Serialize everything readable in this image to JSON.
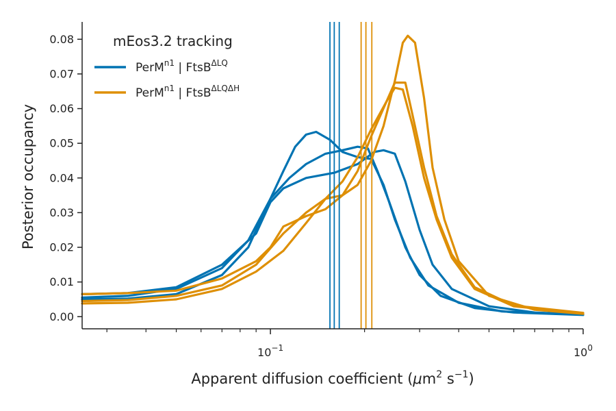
{
  "chart_data": {
    "type": "line",
    "xscale": "log",
    "xlim": [
      0.025,
      1.0
    ],
    "ylim": [
      -0.0035,
      0.085
    ],
    "ylabel": "Posterior occupancy",
    "xlabel": {
      "main": "Apparent diffusion coefficient (",
      "mu": "μ",
      "m": "m",
      "m_exp": "2",
      "s": " s",
      "s_exp": "−1",
      "close": ")"
    },
    "x_ticks": [
      {
        "value": 0.1,
        "base": "10",
        "exp": "−1"
      },
      {
        "value": 1.0,
        "base": "10",
        "exp": "0"
      }
    ],
    "y_ticks": [
      0.0,
      0.01,
      0.02,
      0.03,
      0.04,
      0.05,
      0.06,
      0.07,
      0.08
    ],
    "y_tick_labels": [
      "0.00",
      "0.01",
      "0.02",
      "0.03",
      "0.04",
      "0.05",
      "0.06",
      "0.07",
      "0.08"
    ],
    "legend": {
      "title": "mEos3.2 tracking",
      "placement": "top-left",
      "entries": [
        {
          "base": "PerM",
          "sup1": "n1",
          "mid": " | FtsB",
          "sup2": "ΔLQ",
          "color": "#0173b2"
        },
        {
          "base": "PerM",
          "sup1": "n1",
          "mid": " | FtsB",
          "sup2": "ΔLQΔH",
          "color": "#de8f05"
        }
      ]
    },
    "vlines": [
      {
        "x": 0.155,
        "color": "#0173b2"
      },
      {
        "x": 0.16,
        "color": "#0173b2"
      },
      {
        "x": 0.166,
        "color": "#0173b2"
      },
      {
        "x": 0.195,
        "color": "#de8f05"
      },
      {
        "x": 0.202,
        "color": "#de8f05"
      },
      {
        "x": 0.211,
        "color": "#de8f05"
      }
    ],
    "series": [
      {
        "group": 0,
        "color": "#0173b2",
        "points": [
          [
            0.025,
            0.0055
          ],
          [
            0.035,
            0.006
          ],
          [
            0.05,
            0.008
          ],
          [
            0.07,
            0.014
          ],
          [
            0.085,
            0.022
          ],
          [
            0.1,
            0.034
          ],
          [
            0.115,
            0.04
          ],
          [
            0.13,
            0.044
          ],
          [
            0.15,
            0.047
          ],
          [
            0.17,
            0.048
          ],
          [
            0.19,
            0.049
          ],
          [
            0.205,
            0.0485
          ],
          [
            0.22,
            0.042
          ],
          [
            0.24,
            0.033
          ],
          [
            0.27,
            0.02
          ],
          [
            0.3,
            0.012
          ],
          [
            0.35,
            0.006
          ],
          [
            0.45,
            0.0025
          ],
          [
            0.6,
            0.0012
          ],
          [
            1.0,
            0.0005
          ]
        ]
      },
      {
        "group": 0,
        "color": "#0173b2",
        "points": [
          [
            0.025,
            0.005
          ],
          [
            0.035,
            0.0052
          ],
          [
            0.05,
            0.0065
          ],
          [
            0.07,
            0.012
          ],
          [
            0.085,
            0.02
          ],
          [
            0.1,
            0.034
          ],
          [
            0.11,
            0.042
          ],
          [
            0.12,
            0.049
          ],
          [
            0.13,
            0.0525
          ],
          [
            0.14,
            0.0533
          ],
          [
            0.155,
            0.051
          ],
          [
            0.17,
            0.0475
          ],
          [
            0.19,
            0.046
          ],
          [
            0.21,
            0.0455
          ],
          [
            0.23,
            0.038
          ],
          [
            0.25,
            0.028
          ],
          [
            0.28,
            0.017
          ],
          [
            0.32,
            0.009
          ],
          [
            0.4,
            0.004
          ],
          [
            0.55,
            0.0015
          ],
          [
            1.0,
            0.0006
          ]
        ]
      },
      {
        "group": 0,
        "color": "#0173b2",
        "points": [
          [
            0.025,
            0.0065
          ],
          [
            0.035,
            0.0068
          ],
          [
            0.05,
            0.0085
          ],
          [
            0.07,
            0.015
          ],
          [
            0.09,
            0.024
          ],
          [
            0.1,
            0.033
          ],
          [
            0.11,
            0.037
          ],
          [
            0.13,
            0.04
          ],
          [
            0.16,
            0.0415
          ],
          [
            0.19,
            0.044
          ],
          [
            0.215,
            0.0475
          ],
          [
            0.23,
            0.048
          ],
          [
            0.25,
            0.047
          ],
          [
            0.27,
            0.039
          ],
          [
            0.3,
            0.025
          ],
          [
            0.33,
            0.015
          ],
          [
            0.38,
            0.008
          ],
          [
            0.5,
            0.003
          ],
          [
            0.7,
            0.0012
          ],
          [
            1.0,
            0.0006
          ]
        ]
      },
      {
        "group": 1,
        "color": "#de8f05",
        "points": [
          [
            0.025,
            0.0045
          ],
          [
            0.035,
            0.0048
          ],
          [
            0.05,
            0.006
          ],
          [
            0.07,
            0.009
          ],
          [
            0.09,
            0.015
          ],
          [
            0.11,
            0.024
          ],
          [
            0.13,
            0.03
          ],
          [
            0.15,
            0.034
          ],
          [
            0.17,
            0.039
          ],
          [
            0.19,
            0.046
          ],
          [
            0.21,
            0.054
          ],
          [
            0.235,
            0.062
          ],
          [
            0.25,
            0.066
          ],
          [
            0.265,
            0.0655
          ],
          [
            0.285,
            0.055
          ],
          [
            0.31,
            0.04
          ],
          [
            0.34,
            0.028
          ],
          [
            0.38,
            0.017
          ],
          [
            0.45,
            0.008
          ],
          [
            0.6,
            0.003
          ],
          [
            1.0,
            0.001
          ]
        ]
      },
      {
        "group": 1,
        "color": "#de8f05",
        "points": [
          [
            0.025,
            0.0065
          ],
          [
            0.035,
            0.0068
          ],
          [
            0.05,
            0.0075
          ],
          [
            0.07,
            0.011
          ],
          [
            0.09,
            0.016
          ],
          [
            0.1,
            0.02
          ],
          [
            0.11,
            0.026
          ],
          [
            0.13,
            0.029
          ],
          [
            0.15,
            0.031
          ],
          [
            0.17,
            0.035
          ],
          [
            0.19,
            0.042
          ],
          [
            0.21,
            0.052
          ],
          [
            0.235,
            0.062
          ],
          [
            0.25,
            0.0675
          ],
          [
            0.27,
            0.0675
          ],
          [
            0.285,
            0.058
          ],
          [
            0.31,
            0.043
          ],
          [
            0.34,
            0.029
          ],
          [
            0.38,
            0.018
          ],
          [
            0.45,
            0.0085
          ],
          [
            0.6,
            0.0032
          ],
          [
            1.0,
            0.0011
          ]
        ]
      },
      {
        "group": 1,
        "color": "#de8f05",
        "points": [
          [
            0.025,
            0.0038
          ],
          [
            0.035,
            0.004
          ],
          [
            0.05,
            0.005
          ],
          [
            0.07,
            0.008
          ],
          [
            0.09,
            0.013
          ],
          [
            0.11,
            0.019
          ],
          [
            0.13,
            0.027
          ],
          [
            0.15,
            0.034
          ],
          [
            0.17,
            0.035
          ],
          [
            0.19,
            0.038
          ],
          [
            0.21,
            0.045
          ],
          [
            0.23,
            0.055
          ],
          [
            0.25,
            0.068
          ],
          [
            0.265,
            0.079
          ],
          [
            0.275,
            0.081
          ],
          [
            0.29,
            0.079
          ],
          [
            0.31,
            0.063
          ],
          [
            0.33,
            0.043
          ],
          [
            0.36,
            0.028
          ],
          [
            0.4,
            0.016
          ],
          [
            0.5,
            0.006
          ],
          [
            0.7,
            0.002
          ],
          [
            1.0,
            0.0008
          ]
        ]
      }
    ]
  }
}
